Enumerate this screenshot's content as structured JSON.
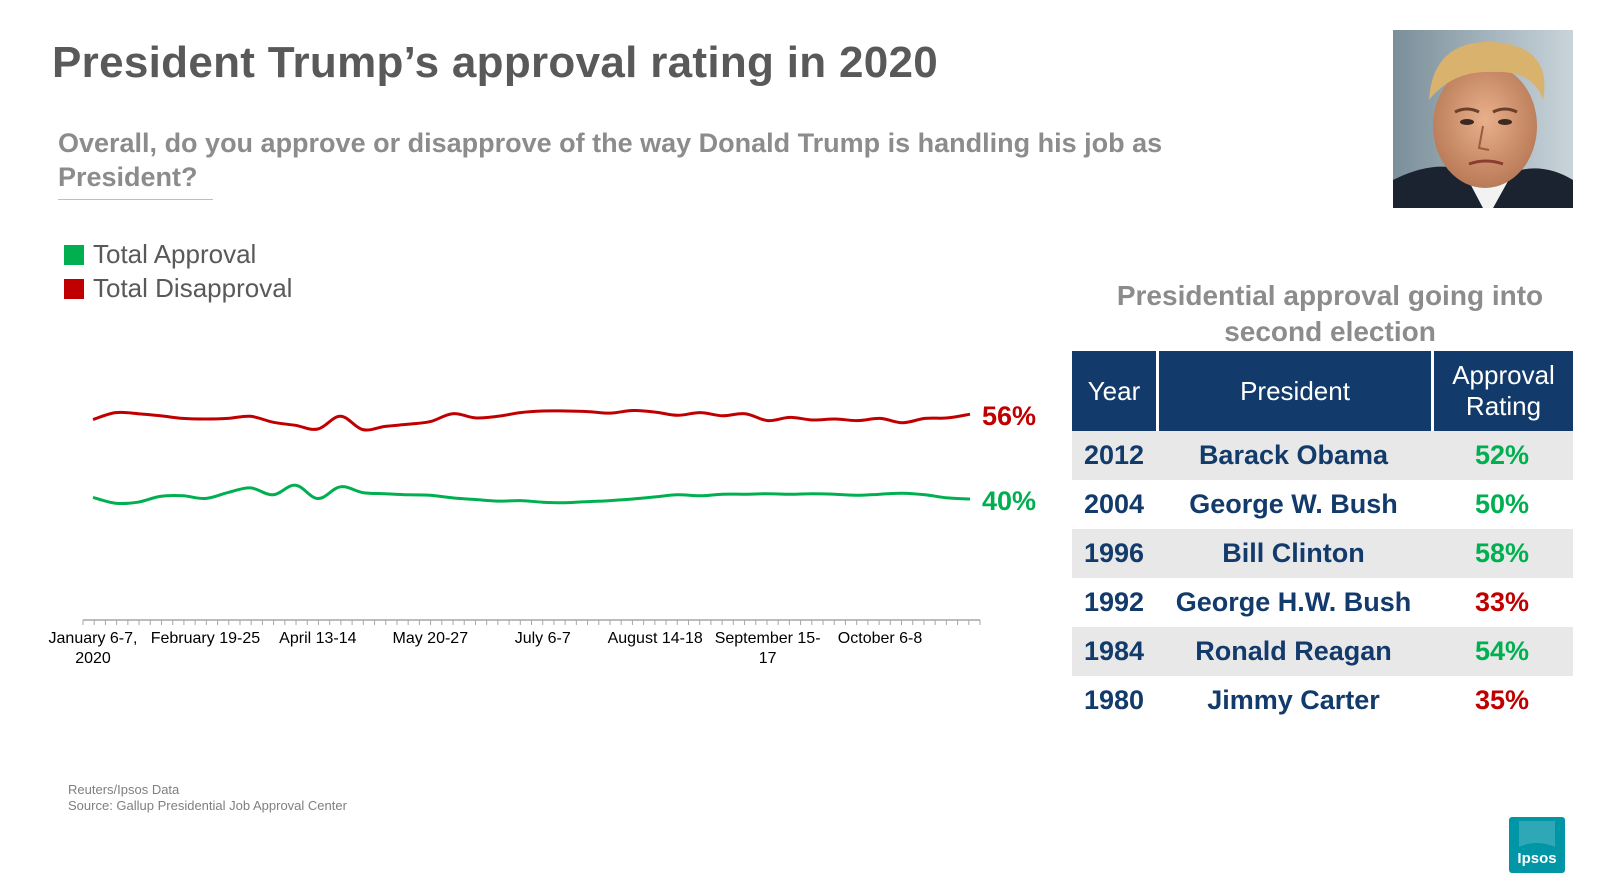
{
  "title": "President Trump’s approval rating in 2020",
  "question": "Overall, do you approve or disapprove of the way Donald Trump is handling his job as President?",
  "colors": {
    "approval": "#00b050",
    "disapproval": "#c00000",
    "table_header": "#123a6b",
    "title_gray": "#595959"
  },
  "legend": {
    "approval": "Total Approval",
    "disapproval": "Total Disapproval"
  },
  "chart_data": {
    "type": "line",
    "title": "",
    "xlabel": "",
    "ylabel": "",
    "ylim": [
      20,
      70
    ],
    "grid": false,
    "x_tick_labels": [
      "January 6-7, 2020",
      "February 19-25",
      "April 13-14",
      "May 20-27",
      "July 6-7",
      "August 14-18",
      "September 15-17",
      "October 6-8"
    ],
    "x_tick_label_positions": [
      0,
      5,
      10,
      15,
      20,
      25,
      30,
      35
    ],
    "x_count": 40,
    "series": [
      {
        "name": "Total Disapproval",
        "values": [
          55,
          56.3,
          56.1,
          55.7,
          55.2,
          55.1,
          55.2,
          55.6,
          54.5,
          53.9,
          53.2,
          55.6,
          53.1,
          53.7,
          54.1,
          54.6,
          56.1,
          55.3,
          55.6,
          56.3,
          56.6,
          56.6,
          56.5,
          56.2,
          56.7,
          56.4,
          55.8,
          56.3,
          55.7,
          56.1,
          54.8,
          55.4,
          54.9,
          55.1,
          54.8,
          55.2,
          54.4,
          55.2,
          55.3,
          56
        ],
        "end_label": "56%",
        "color": "#c00000"
      },
      {
        "name": "Total Approval",
        "values": [
          40.3,
          39.2,
          39.4,
          40.5,
          40.6,
          40.1,
          41.2,
          42.1,
          40.8,
          42.6,
          40.1,
          42.3,
          41.2,
          41,
          40.8,
          40.7,
          40.2,
          39.9,
          39.6,
          39.7,
          39.4,
          39.3,
          39.5,
          39.7,
          40,
          40.4,
          40.8,
          40.6,
          40.9,
          40.9,
          41,
          40.9,
          41,
          40.9,
          40.7,
          40.9,
          41.1,
          40.8,
          40.2,
          40
        ],
        "end_label": "40%",
        "color": "#00b050"
      }
    ]
  },
  "table": {
    "title": "Presidential approval going into second election",
    "headers": [
      "Year",
      "President",
      "Approval Rating"
    ],
    "rows": [
      {
        "year": "2012",
        "president": "Barack Obama",
        "rating": "52%",
        "color": "#00b050"
      },
      {
        "year": "2004",
        "president": "George W. Bush",
        "rating": "50%",
        "color": "#00b050"
      },
      {
        "year": "1996",
        "president": "Bill Clinton",
        "rating": "58%",
        "color": "#00b050"
      },
      {
        "year": "1992",
        "president": "George H.W. Bush",
        "rating": "33%",
        "color": "#c00000"
      },
      {
        "year": "1984",
        "president": "Ronald Reagan",
        "rating": "54%",
        "color": "#00b050"
      },
      {
        "year": "1980",
        "president": "Jimmy Carter",
        "rating": "35%",
        "color": "#c00000"
      }
    ]
  },
  "source": {
    "line1": "Reuters/Ipsos Data",
    "line2": "Source: Gallup Presidential Job Approval Center"
  },
  "logo": {
    "text": "Ipsos",
    "color": "#0096a6"
  }
}
